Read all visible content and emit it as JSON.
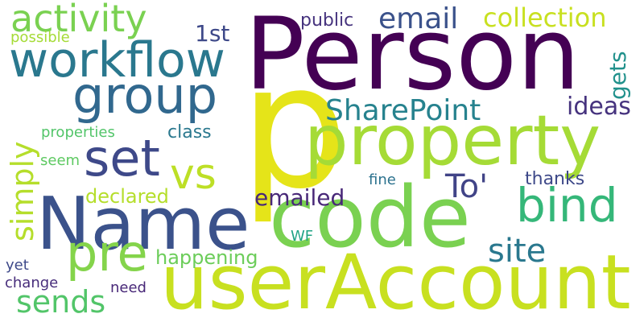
{
  "words": [
    {
      "text": "Person",
      "color": "#440154"
    },
    {
      "text": "p",
      "color": "#e5e419"
    },
    {
      "text": "code",
      "color": "#7ad151"
    },
    {
      "text": "userAccount",
      "color": "#c8e020"
    },
    {
      "text": "property",
      "color": "#a5db36"
    },
    {
      "text": "Name",
      "color": "#3b528b"
    },
    {
      "text": "workflow",
      "color": "#2a788e"
    },
    {
      "text": "group",
      "color": "#31688e"
    },
    {
      "text": "set",
      "color": "#3e4989"
    },
    {
      "text": "pre",
      "color": "#84d44b"
    },
    {
      "text": "bind",
      "color": "#35b779"
    },
    {
      "text": "activity",
      "color": "#7ad151"
    },
    {
      "text": "vs",
      "color": "#bddf26"
    },
    {
      "text": "email",
      "color": "#3b528b"
    },
    {
      "text": "To'",
      "color": "#414487"
    },
    {
      "text": "SharePoint",
      "color": "#26828e"
    },
    {
      "text": "collection",
      "color": "#c8e020"
    },
    {
      "text": "sends",
      "color": "#52c569"
    },
    {
      "text": "site",
      "color": "#2a788e"
    },
    {
      "text": "simply",
      "color": "#b5de2b"
    },
    {
      "text": "emailed",
      "color": "#482878"
    },
    {
      "text": "ideas",
      "color": "#46337e"
    },
    {
      "text": "gets",
      "color": "#21918c"
    },
    {
      "text": "1st",
      "color": "#3e4989"
    },
    {
      "text": "happening",
      "color": "#6ccd5a"
    },
    {
      "text": "declared",
      "color": "#b5de2b"
    },
    {
      "text": "thanks",
      "color": "#3e4989"
    },
    {
      "text": "public",
      "color": "#46337e"
    },
    {
      "text": "class",
      "color": "#2a788e"
    },
    {
      "text": "properties",
      "color": "#52c569"
    },
    {
      "text": "possible",
      "color": "#a5db36"
    },
    {
      "text": "change",
      "color": "#472d7b"
    },
    {
      "text": "yet",
      "color": "#3e4989"
    },
    {
      "text": "need",
      "color": "#482878"
    },
    {
      "text": "fine",
      "color": "#2c728e"
    },
    {
      "text": "seem",
      "color": "#5ec962"
    },
    {
      "text": "WF",
      "color": "#20a386"
    }
  ]
}
